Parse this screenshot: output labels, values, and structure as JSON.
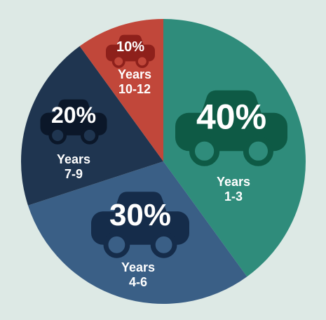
{
  "chart_data": {
    "type": "pie",
    "categories": [
      "Years 1-3",
      "Years 4-6",
      "Years 7-9",
      "Years 10-12"
    ],
    "values": [
      40,
      30,
      20,
      10
    ],
    "value_labels": [
      "40%",
      "30%",
      "20%",
      "10%"
    ],
    "colors": [
      "#2f8c7b",
      "#3a5f86",
      "#1f3550",
      "#c1473a"
    ]
  }
}
